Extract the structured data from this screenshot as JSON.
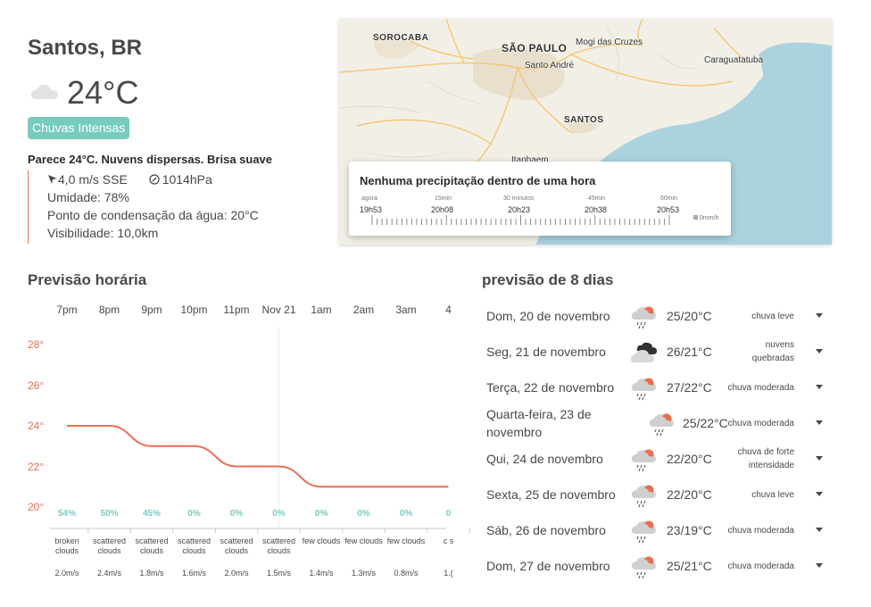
{
  "current": {
    "city": "Santos, BR",
    "temp": "24°C",
    "icon": "cloud-icon",
    "alert": "Chuvas Intensas",
    "feels_like": "Parece 24°C. Nuvens dispersas. Brisa suave",
    "wind": "4,0 m/s SSE",
    "pressure": "1014hPa",
    "humidity": "Umidade: 78%",
    "dew_point": "Ponto de condensação da água: 20°C",
    "visibility": "Visibilidade: 10,0km"
  },
  "map": {
    "labels": {
      "sorocaba": "SOROCABA",
      "sao_paulo": "SÃO PAULO",
      "mogi": "Mogi das Cruzes",
      "santo_andre": "Santo André",
      "caraguatatuba": "Caraguatatuba",
      "santos": "SANTOS",
      "itanhaem": "Itanhaem"
    },
    "colors": {
      "land": "#f2efe6",
      "sea": "#aad3df",
      "urban": "#e8e0cc",
      "road": "#f5c56b"
    }
  },
  "precipitation": {
    "title": "Nenhuma precipitação dentro de uma hora",
    "ticks": [
      {
        "label": "agora",
        "time": "19h53"
      },
      {
        "label": "15min",
        "time": "20h08"
      },
      {
        "label": "30 minutos",
        "time": "20h23"
      },
      {
        "label": "45min",
        "time": "20h38"
      },
      {
        "label": "60min",
        "time": "20h53"
      }
    ],
    "legend": "0mm/h"
  },
  "hourly": {
    "title": "Previsão horária",
    "times": [
      "7pm",
      "8pm",
      "9pm",
      "10pm",
      "11pm",
      "Nov 21",
      "1am",
      "2am",
      "3am",
      "4"
    ],
    "y_ticks": [
      "28°",
      "26°",
      "24°",
      "22°",
      "20°"
    ],
    "pops": [
      "54%",
      "50%",
      "45%",
      "0%",
      "0%",
      "0%",
      "0%",
      "0%",
      "0%",
      "0"
    ],
    "descriptions": [
      "broken clouds",
      "scattered clouds",
      "scattered clouds",
      "scattered clouds",
      "scattered clouds",
      "scattered clouds",
      "few clouds",
      "few clouds",
      "few clouds",
      "c s"
    ],
    "winds": [
      "2.0m/s",
      "2.4m/s",
      "1.8m/s",
      "1.6m/s",
      "2.0m/s",
      "1.5m/s",
      "1.4m/s",
      "1.3m/s",
      "0.8m/s",
      "1.("
    ]
  },
  "chart_data": {
    "type": "line",
    "x": [
      "7pm",
      "8pm",
      "9pm",
      "10pm",
      "11pm",
      "Nov 21",
      "1am",
      "2am",
      "3am",
      "4"
    ],
    "series": [
      {
        "values": [
          24,
          24,
          23,
          23,
          22,
          22,
          21,
          21,
          21,
          21
        ]
      }
    ],
    "ylim": [
      20,
      28
    ],
    "y_ticks": [
      20,
      22,
      24,
      26,
      28
    ],
    "grid": false,
    "colors": {
      "line": "#e96e50"
    }
  },
  "daily": {
    "title": "previsão de 8 dias",
    "days": [
      {
        "date": "Dom, 20 de novembro",
        "temp": "25/20°C",
        "desc": "chuva leve",
        "icon": "rain-icon"
      },
      {
        "date": "Seg, 21 de novembro",
        "temp": "26/21°C",
        "desc": "nuvens quebradas",
        "icon": "broken-clouds-icon"
      },
      {
        "date": "Terça, 22 de novembro",
        "temp": "27/22°C",
        "desc": "chuva moderada",
        "icon": "rain-icon"
      },
      {
        "date": "Quarta-feira, 23 de novembro",
        "temp": "25/22°C",
        "desc": "chuva moderada",
        "icon": "rain-icon"
      },
      {
        "date": "Qui, 24 de novembro",
        "temp": "22/20°C",
        "desc": "chuva de forte intensidade",
        "icon": "rain-icon"
      },
      {
        "date": "Sexta, 25 de novembro",
        "temp": "22/20°C",
        "desc": "chuva leve",
        "icon": "rain-icon"
      },
      {
        "date": "Sáb, 26 de novembro",
        "temp": "23/19°C",
        "desc": "chuva moderada",
        "icon": "rain-icon"
      },
      {
        "date": "Dom, 27 de novembro",
        "temp": "25/21°C",
        "desc": "chuva moderada",
        "icon": "rain-icon"
      }
    ]
  }
}
